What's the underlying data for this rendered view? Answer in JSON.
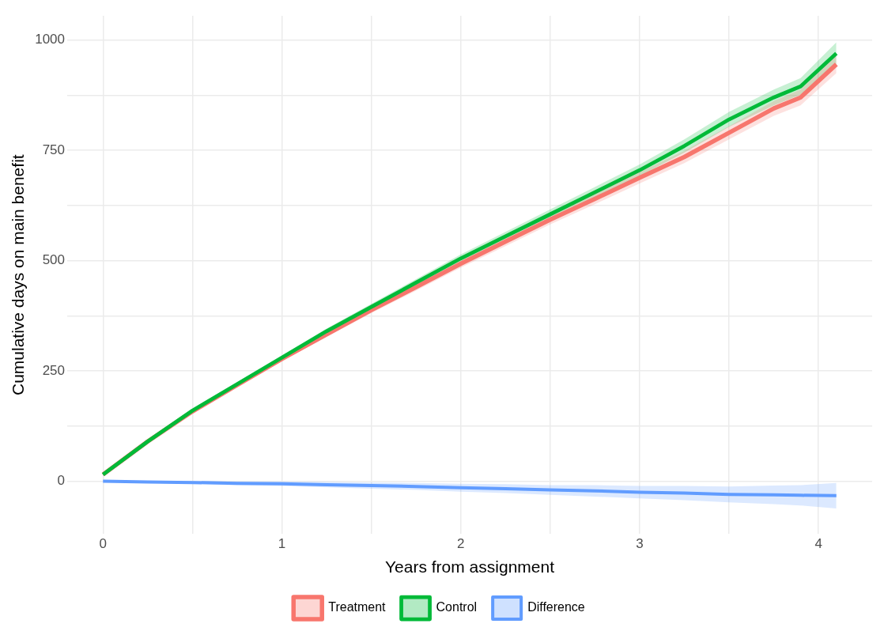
{
  "chart_data": {
    "type": "line",
    "xlabel": "Years from assignment",
    "ylabel": "Cumulative days on main benefit",
    "x": [
      0,
      0.25,
      0.5,
      0.75,
      1,
      1.25,
      1.5,
      1.75,
      2,
      2.25,
      2.5,
      2.75,
      3,
      3.25,
      3.5,
      3.75,
      3.9,
      4.1
    ],
    "series": [
      {
        "name": "Treatment",
        "color": "#f8766d",
        "values": [
          15,
          90,
          158,
          218,
          277,
          333,
          388,
          440,
          493,
          543,
          593,
          640,
          688,
          735,
          790,
          845,
          870,
          945
        ],
        "lower": [
          14,
          88,
          155,
          214,
          272,
          327,
          381,
          432,
          484,
          533,
          582,
          628,
          675,
          721,
          775,
          828,
          852,
          925
        ],
        "upper": [
          16,
          92,
          161,
          222,
          282,
          339,
          395,
          448,
          502,
          553,
          604,
          652,
          701,
          749,
          805,
          862,
          888,
          965
        ]
      },
      {
        "name": "Control",
        "color": "#00ba38",
        "values": [
          15,
          90,
          160,
          220,
          280,
          340,
          395,
          450,
          505,
          555,
          605,
          655,
          705,
          760,
          820,
          870,
          895,
          970
        ],
        "lower": [
          14,
          88,
          157,
          216,
          275,
          334,
          388,
          442,
          496,
          545,
          594,
          643,
          692,
          745,
          803,
          852,
          876,
          945
        ],
        "upper": [
          16,
          92,
          163,
          224,
          285,
          346,
          402,
          458,
          514,
          565,
          616,
          667,
          718,
          775,
          837,
          888,
          914,
          995
        ]
      },
      {
        "name": "Difference",
        "color": "#619cff",
        "values": [
          0,
          -2,
          -3,
          -5,
          -6,
          -8,
          -10,
          -12,
          -15,
          -17,
          -20,
          -22,
          -25,
          -27,
          -30,
          -31,
          -32,
          -33
        ],
        "lower": [
          -1,
          -4,
          -6,
          -9,
          -11,
          -14,
          -17,
          -20,
          -24,
          -27,
          -31,
          -35,
          -39,
          -43,
          -48,
          -52,
          -55,
          -62
        ],
        "upper": [
          1,
          0,
          0,
          -1,
          -1,
          -2,
          -3,
          -4,
          -6,
          -7,
          -9,
          -9,
          -11,
          -11,
          -12,
          -10,
          -9,
          -4
        ]
      }
    ],
    "xlim": [
      -0.2,
      4.3
    ],
    "xticks": [
      0,
      {
        "value": 0.5,
        "label": null
      },
      1,
      {
        "value": 1.5,
        "label": null
      },
      2,
      {
        "value": 2.5,
        "label": null
      },
      3,
      {
        "value": 3.5,
        "label": null
      },
      4
    ],
    "ylim": [
      -120,
      1055
    ],
    "yticks": [
      0,
      {
        "value": 125,
        "label": null
      },
      250,
      {
        "value": 375,
        "label": null
      },
      500,
      {
        "value": 625,
        "label": null
      },
      750,
      {
        "value": 875,
        "label": null
      },
      1000
    ],
    "grid": true,
    "legend": "bottom",
    "marker": "none",
    "line_style": "solid"
  }
}
